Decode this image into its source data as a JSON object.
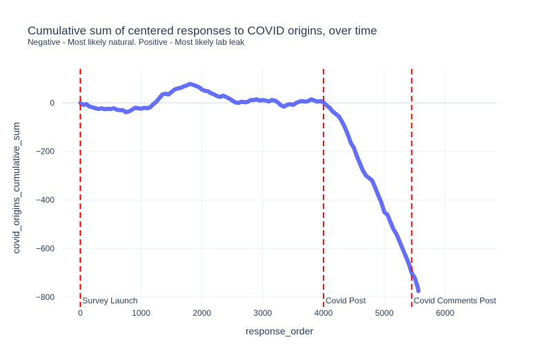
{
  "chart_data": {
    "type": "line",
    "title": "Cumulative sum of centered responses to COVID origins, over time",
    "subtitle": "Negative - Most likely natural. Positive - Most likely lab leak",
    "xlabel": "response_order",
    "ylabel": "covid_origins_cumulative_sum",
    "xlim": [
      -300,
      6850
    ],
    "ylim": [
      -840,
      140
    ],
    "x_ticks": [
      0,
      1000,
      2000,
      3000,
      4000,
      5000,
      6000
    ],
    "y_ticks": [
      0,
      -200,
      -400,
      -600,
      -800
    ],
    "y_tick_labels": [
      "0",
      "−200",
      "−400",
      "−600",
      "−800"
    ],
    "grid": true,
    "line_color": "#636efa",
    "series": [
      {
        "x": [
          0,
          50,
          100,
          150,
          200,
          250,
          300,
          350,
          400,
          450,
          500,
          550,
          600,
          650,
          700,
          750,
          800,
          850,
          900,
          950,
          1000,
          1050,
          1100,
          1150,
          1200,
          1250,
          1300,
          1350,
          1400,
          1450,
          1500,
          1550,
          1600,
          1650,
          1700,
          1750,
          1800,
          1850,
          1900,
          1950,
          2000,
          2050,
          2100,
          2150,
          2200,
          2250,
          2300,
          2350,
          2400,
          2450,
          2500,
          2550,
          2600,
          2650,
          2700,
          2750,
          2800,
          2850,
          2900,
          2950,
          3000,
          3050,
          3100,
          3150,
          3200,
          3250,
          3300,
          3350,
          3400,
          3450,
          3500,
          3550,
          3600,
          3650,
          3700,
          3750,
          3800,
          3850,
          3900,
          3950,
          4000,
          4050,
          4100,
          4150,
          4200,
          4250,
          4300,
          4350,
          4400,
          4450,
          4500,
          4550,
          4600,
          4650,
          4700,
          4750,
          4800,
          4850,
          4900,
          4950,
          5000,
          5050,
          5100,
          5150,
          5200,
          5250,
          5300,
          5350,
          5400,
          5450,
          5500,
          5550,
          5560
        ],
        "y": [
          0,
          -8,
          -5,
          -15,
          -18,
          -22,
          -25,
          -22,
          -26,
          -24,
          -25,
          -22,
          -28,
          -30,
          -30,
          -38,
          -35,
          -28,
          -20,
          -22,
          -24,
          -20,
          -22,
          -18,
          -5,
          5,
          20,
          35,
          38,
          35,
          45,
          55,
          60,
          62,
          68,
          72,
          78,
          75,
          70,
          65,
          55,
          50,
          48,
          40,
          35,
          28,
          25,
          30,
          24,
          18,
          10,
          2,
          0,
          5,
          3,
          4,
          12,
          12,
          15,
          10,
          12,
          10,
          6,
          12,
          10,
          2,
          -10,
          -15,
          -8,
          -5,
          -8,
          0,
          5,
          8,
          5,
          8,
          15,
          10,
          5,
          8,
          2,
          -10,
          -20,
          -35,
          -45,
          -55,
          -75,
          -100,
          -130,
          -165,
          -185,
          -220,
          -250,
          -280,
          -300,
          -310,
          -320,
          -350,
          -380,
          -410,
          -450,
          -460,
          -490,
          -520,
          -540,
          -570,
          -600,
          -630,
          -660,
          -700,
          -720,
          -760,
          -775
        ]
      }
    ],
    "annotations": [
      {
        "x": 0,
        "label": "Survey Launch"
      },
      {
        "x": 4000,
        "label": "Covid Post"
      },
      {
        "x": 5450,
        "label": "Covid Comments Post"
      }
    ],
    "annotation_color": "#ff0000"
  }
}
